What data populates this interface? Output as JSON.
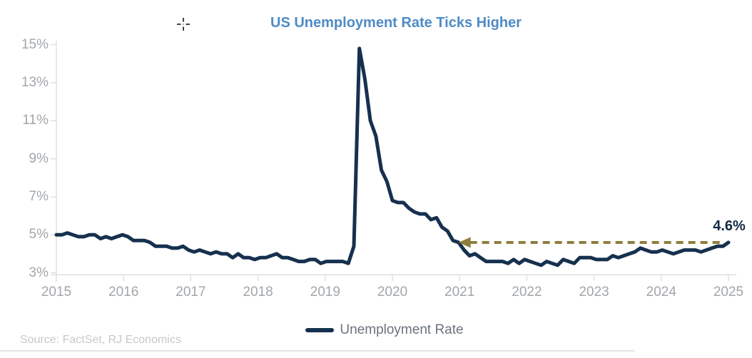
{
  "title": "US Unemployment Rate Ticks Higher",
  "source": "Source: FactSet, RJ Economics",
  "legend": {
    "label": "Unemployment Rate",
    "position": "bottom"
  },
  "annotation": {
    "label": "4.6%",
    "value": 4.6
  },
  "colors": {
    "line": "#16304f",
    "title": "#4e8bc4",
    "axis_text": "#a2a6aa",
    "axis_line": "#dcdcdc",
    "arrow": "#8f7d3e",
    "annotation_text": "#132942",
    "legend_text": "#6a737d",
    "source_text": "#c8c8c8",
    "divider": "#e4e4e4"
  },
  "chart_data": {
    "type": "line",
    "title": "US Unemployment Rate Ticks Higher",
    "x_axis": {
      "tick_labels": [
        "2015",
        "2016",
        "2017",
        "2018",
        "2019",
        "2020",
        "2021",
        "2022",
        "2023",
        "2024",
        "2025"
      ]
    },
    "y_axis": {
      "tick_labels": [
        "3%",
        "5%",
        "7%",
        "9%",
        "11%",
        "13%",
        "15%"
      ],
      "min": 3,
      "max": 15,
      "unit": "%"
    },
    "grid": false,
    "legend_position": "bottom",
    "series": [
      {
        "name": "Unemployment Rate",
        "frequency": "monthly",
        "start": "2015-09",
        "values": [
          5.0,
          5.0,
          5.1,
          5.0,
          4.9,
          4.9,
          5.0,
          5.0,
          4.8,
          4.9,
          4.8,
          4.9,
          5.0,
          4.9,
          4.7,
          4.7,
          4.7,
          4.6,
          4.4,
          4.4,
          4.4,
          4.3,
          4.3,
          4.4,
          4.2,
          4.1,
          4.2,
          4.1,
          4.0,
          4.1,
          4.0,
          4.0,
          3.8,
          4.0,
          3.8,
          3.8,
          3.7,
          3.8,
          3.8,
          3.9,
          4.0,
          3.8,
          3.8,
          3.7,
          3.6,
          3.6,
          3.7,
          3.7,
          3.5,
          3.6,
          3.6,
          3.6,
          3.6,
          3.5,
          4.4,
          14.8,
          13.2,
          11.0,
          10.2,
          8.4,
          7.8,
          6.8,
          6.7,
          6.7,
          6.4,
          6.2,
          6.1,
          6.1,
          5.8,
          5.9,
          5.4,
          5.2,
          4.7,
          4.6,
          4.2,
          3.9,
          4.0,
          3.8,
          3.6,
          3.6,
          3.6,
          3.6,
          3.5,
          3.7,
          3.5,
          3.7,
          3.6,
          3.5,
          3.4,
          3.6,
          3.5,
          3.4,
          3.7,
          3.6,
          3.5,
          3.8,
          3.8,
          3.8,
          3.7,
          3.7,
          3.7,
          3.9,
          3.8,
          3.9,
          4.0,
          4.1,
          4.3,
          4.2,
          4.1,
          4.1,
          4.2,
          4.1,
          4.0,
          4.1,
          4.2,
          4.2,
          4.2,
          4.1,
          4.2,
          4.3,
          4.4,
          4.4,
          4.6
        ]
      }
    ],
    "annotation": {
      "text": "4.6%",
      "value": 4.6,
      "style": "horizontal-dashed-arrow-pointing-left"
    }
  }
}
